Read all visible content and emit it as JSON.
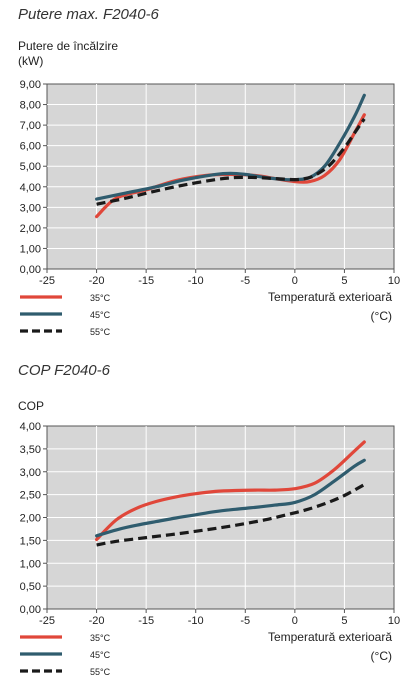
{
  "chart_data": [
    {
      "type": "line",
      "title": "Putere max. F2040-6",
      "ylabel_line1": "Putere de încălzire",
      "ylabel_line2": "(kW)",
      "xlabel": "Temperatură exterioară",
      "xunit": "(°C)",
      "xlim": [
        -25,
        10
      ],
      "ylim": [
        0,
        9
      ],
      "xticks": [
        "-25",
        "-20",
        "-15",
        "-10",
        "-5",
        "0",
        "5",
        "10"
      ],
      "yticks": [
        "0,00",
        "1,00",
        "2,00",
        "3,00",
        "4,00",
        "5,00",
        "6,00",
        "7,00",
        "8,00",
        "9,00"
      ],
      "grid": true,
      "legend_position": "bottom-left",
      "series": [
        {
          "name": "35°C",
          "color": "#e0473a",
          "dash": false,
          "x": [
            -20,
            -18,
            -15,
            -12,
            -9,
            -6.5,
            -4,
            -2,
            0,
            1.5,
            3,
            4.5,
            6,
            7
          ],
          "y": [
            2.55,
            3.45,
            3.85,
            4.3,
            4.55,
            4.6,
            4.55,
            4.4,
            4.25,
            4.25,
            4.55,
            5.3,
            6.6,
            7.5
          ]
        },
        {
          "name": "45°C",
          "color": "#2f5c6e",
          "dash": false,
          "x": [
            -20,
            -17,
            -14,
            -11,
            -8,
            -6.5,
            -5,
            -3,
            -1,
            0,
            1.5,
            3,
            4.5,
            6,
            7
          ],
          "y": [
            3.4,
            3.7,
            4.0,
            4.35,
            4.6,
            4.65,
            4.6,
            4.45,
            4.35,
            4.35,
            4.45,
            5.0,
            6.1,
            7.4,
            8.45
          ]
        },
        {
          "name": "55°C",
          "color": "#1a1a1a",
          "dash": true,
          "x": [
            -20,
            -17,
            -14,
            -11,
            -8,
            -6,
            -4,
            -2,
            0,
            1,
            2,
            3.5,
            5,
            6,
            7
          ],
          "y": [
            3.15,
            3.45,
            3.8,
            4.1,
            4.35,
            4.45,
            4.45,
            4.4,
            4.35,
            4.4,
            4.55,
            5.05,
            5.9,
            6.6,
            7.3
          ]
        }
      ]
    },
    {
      "type": "line",
      "title": "COP F2040-6",
      "ylabel_line1": "COP",
      "xlabel": "Temperatură exterioară",
      "xunit": "(°C)",
      "xlim": [
        -25,
        10
      ],
      "ylim": [
        0,
        4
      ],
      "xticks": [
        "-25",
        "-20",
        "-15",
        "-10",
        "-5",
        "0",
        "5",
        "10"
      ],
      "yticks": [
        "0,00",
        "0,50",
        "1,00",
        "1,50",
        "2,00",
        "2,50",
        "3,00",
        "3,50",
        "4,00"
      ],
      "grid": true,
      "legend_position": "bottom-left",
      "series": [
        {
          "name": "35°C",
          "color": "#e0473a",
          "dash": false,
          "x": [
            -20,
            -18,
            -16,
            -14,
            -12,
            -10,
            -8,
            -6,
            -4,
            -2,
            0,
            2,
            4,
            6,
            7
          ],
          "y": [
            1.52,
            1.95,
            2.2,
            2.35,
            2.45,
            2.52,
            2.57,
            2.59,
            2.6,
            2.6,
            2.63,
            2.75,
            3.05,
            3.45,
            3.65
          ]
        },
        {
          "name": "45°C",
          "color": "#2f5c6e",
          "dash": false,
          "x": [
            -20,
            -18,
            -16,
            -14,
            -12,
            -10,
            -8,
            -6,
            -4,
            -2,
            0,
            2,
            4,
            6,
            7
          ],
          "y": [
            1.6,
            1.73,
            1.83,
            1.91,
            1.99,
            2.06,
            2.13,
            2.18,
            2.22,
            2.27,
            2.33,
            2.5,
            2.8,
            3.12,
            3.25
          ]
        },
        {
          "name": "55°C",
          "color": "#1a1a1a",
          "dash": true,
          "x": [
            -20,
            -18,
            -15,
            -12,
            -9,
            -6,
            -3,
            -1,
            1,
            3,
            5,
            7
          ],
          "y": [
            1.4,
            1.48,
            1.56,
            1.64,
            1.73,
            1.83,
            1.95,
            2.05,
            2.16,
            2.3,
            2.48,
            2.72
          ]
        }
      ]
    }
  ]
}
